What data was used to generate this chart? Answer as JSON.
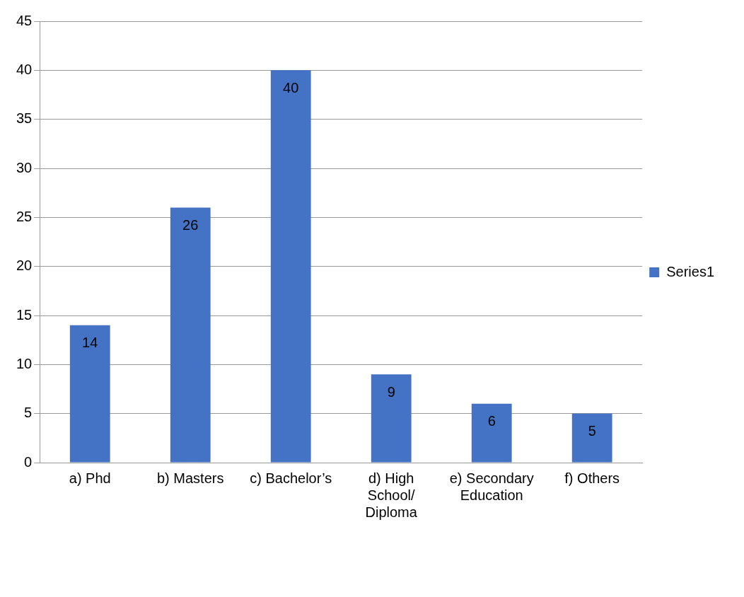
{
  "chart_data": {
    "type": "bar",
    "categories": [
      "a) Phd",
      "b) Masters",
      "c) Bachelor’s",
      "d) High School/ Diploma",
      "e) Secondary Education",
      "f) Others"
    ],
    "series": [
      {
        "name": "Series1",
        "color": "#4472c4",
        "values": [
          14,
          26,
          40,
          9,
          6,
          5
        ]
      }
    ],
    "ylim": [
      0,
      45
    ],
    "yticks": [
      0,
      5,
      10,
      15,
      20,
      25,
      30,
      35,
      40,
      45
    ],
    "grid": "y",
    "legend": "right",
    "data_labels": true
  }
}
